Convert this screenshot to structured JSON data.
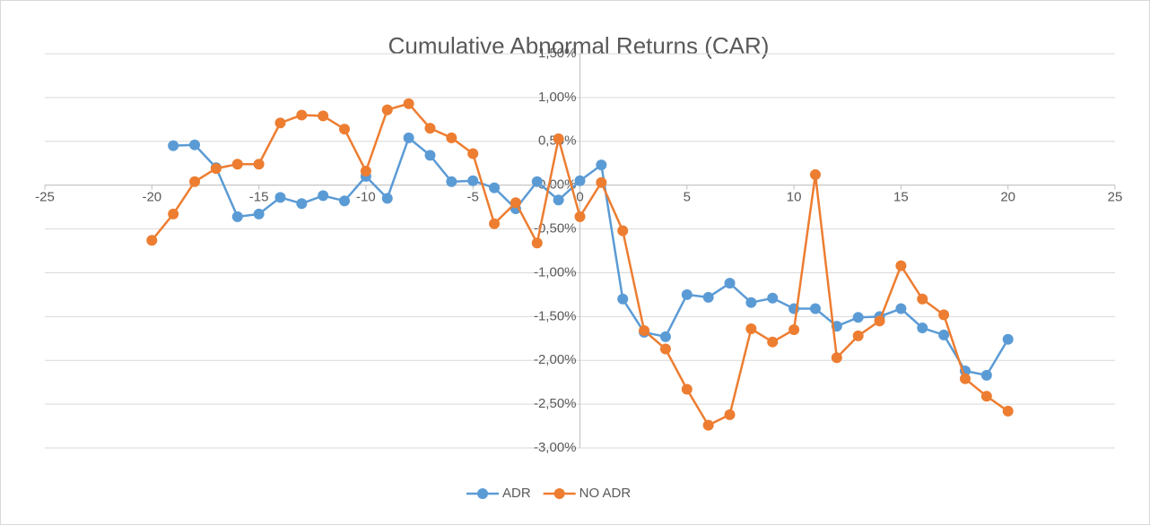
{
  "chart_data": {
    "type": "line",
    "title": "Cumulative Abnormal Returns (CAR)",
    "xlim": [
      -25,
      25
    ],
    "xticks": [
      -25,
      -20,
      -15,
      -10,
      -5,
      0,
      5,
      10,
      15,
      20,
      25
    ],
    "ylim": [
      -3,
      1.5
    ],
    "yticks": [
      {
        "value": 1.5,
        "label": "1,50%"
      },
      {
        "value": 1,
        "label": "1,00%"
      },
      {
        "value": 0.5,
        "label": "0,50%"
      },
      {
        "value": 0,
        "label": "0,00%"
      },
      {
        "value": -0.5,
        "label": "-0,50%"
      },
      {
        "value": -1,
        "label": "-1,00%"
      },
      {
        "value": -1.5,
        "label": "-1,50%"
      },
      {
        "value": -2,
        "label": "-2,00%"
      },
      {
        "value": -2.5,
        "label": "-2,50%"
      },
      {
        "value": -3,
        "label": "-3,00%"
      }
    ],
    "grid": true,
    "legend": "bottom",
    "series": [
      {
        "name": "ADR",
        "color": "#5b9bd5",
        "x": [
          -19,
          -18,
          -17,
          -16,
          -15,
          -14,
          -13,
          -12,
          -11,
          -10,
          -9,
          -8,
          -7,
          -6,
          -5,
          -4,
          -3,
          -2,
          -1,
          0,
          1,
          2,
          3,
          4,
          5,
          6,
          7,
          8,
          9,
          10,
          11,
          12,
          13,
          14,
          15,
          16,
          17,
          18,
          19,
          20
        ],
        "values": [
          0.45,
          0.46,
          0.2,
          -0.36,
          -0.33,
          -0.14,
          -0.21,
          -0.12,
          -0.18,
          0.1,
          -0.15,
          0.54,
          0.34,
          0.04,
          0.05,
          -0.03,
          -0.27,
          0.04,
          -0.17,
          0.05,
          0.23,
          -1.3,
          -1.68,
          -1.73,
          -1.25,
          -1.28,
          -1.12,
          -1.34,
          -1.29,
          -1.41,
          -1.41,
          -1.61,
          -1.51,
          -1.5,
          -1.41,
          -1.63,
          -1.71,
          -2.12,
          -2.17,
          -1.76
        ]
      },
      {
        "name": "NO ADR",
        "color": "#ed7d31",
        "x": [
          -20,
          -19,
          -18,
          -17,
          -16,
          -15,
          -14,
          -13,
          -12,
          -11,
          -10,
          -9,
          -8,
          -7,
          -6,
          -5,
          -4,
          -3,
          -2,
          -1,
          0,
          1,
          2,
          3,
          4,
          5,
          6,
          7,
          8,
          9,
          10,
          11,
          12,
          13,
          14,
          15,
          16,
          17,
          18,
          19,
          20
        ],
        "values": [
          -0.63,
          -0.33,
          0.04,
          0.19,
          0.24,
          0.24,
          0.71,
          0.8,
          0.79,
          0.64,
          0.16,
          0.86,
          0.93,
          0.65,
          0.54,
          0.36,
          -0.44,
          -0.2,
          -0.66,
          0.53,
          -0.36,
          0.03,
          -0.52,
          -1.66,
          -1.87,
          -2.33,
          -2.74,
          -2.62,
          -1.64,
          -1.79,
          -1.65,
          0.12,
          -1.97,
          -1.72,
          -1.55,
          -0.92,
          -1.3,
          -1.48,
          -2.21,
          -2.41,
          -2.58
        ]
      }
    ]
  }
}
